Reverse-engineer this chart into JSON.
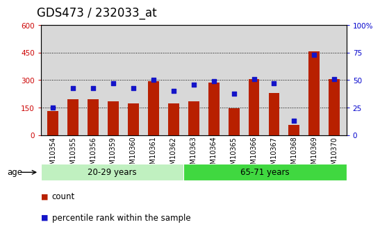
{
  "title": "GDS473 / 232033_at",
  "samples": [
    "GSM10354",
    "GSM10355",
    "GSM10356",
    "GSM10359",
    "GSM10360",
    "GSM10361",
    "GSM10362",
    "GSM10363",
    "GSM10364",
    "GSM10365",
    "GSM10366",
    "GSM10367",
    "GSM10368",
    "GSM10369",
    "GSM10370"
  ],
  "counts": [
    130,
    195,
    195,
    185,
    175,
    295,
    175,
    185,
    285,
    145,
    305,
    230,
    55,
    455,
    305
  ],
  "percentile_ranks": [
    25,
    43,
    43,
    47,
    43,
    50,
    40,
    46,
    49,
    38,
    51,
    47,
    13,
    73,
    51
  ],
  "group1_label": "20-29 years",
  "group2_label": "65-71 years",
  "group1_count": 7,
  "group2_count": 8,
  "left_ylim": [
    0,
    600
  ],
  "right_ylim": [
    0,
    100
  ],
  "left_yticks": [
    0,
    150,
    300,
    450,
    600
  ],
  "right_yticks": [
    0,
    25,
    50,
    75,
    100
  ],
  "bar_color": "#b82000",
  "square_color": "#1414c8",
  "bg_plot": "#d8d8d8",
  "bg_group1": "#c0f0c0",
  "bg_group2": "#40d840",
  "age_label": "age",
  "legend_count": "count",
  "legend_pct": "percentile rank within the sample",
  "ylabel_left_color": "#cc0000",
  "ylabel_right_color": "#0000cc",
  "grid_yticks": [
    150,
    300,
    450
  ],
  "title_fontsize": 12,
  "tick_fontsize": 7.5,
  "label_fontsize": 8.5
}
